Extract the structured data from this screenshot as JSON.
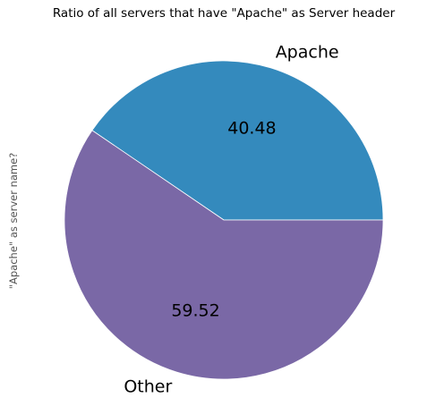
{
  "chart_data": {
    "type": "pie",
    "title": "Ratio of all servers that have \"Apache\" as Server header",
    "ylabel": "\"Apache\" as server name?",
    "categories": [
      "Apache",
      "Other"
    ],
    "values": [
      40.48,
      59.52
    ],
    "value_labels": [
      "40.48",
      "59.52"
    ],
    "colors": [
      "#348ABD",
      "#7A68A6"
    ],
    "start_angle_deg": 0,
    "direction": "counterclockwise",
    "legend": "none"
  }
}
